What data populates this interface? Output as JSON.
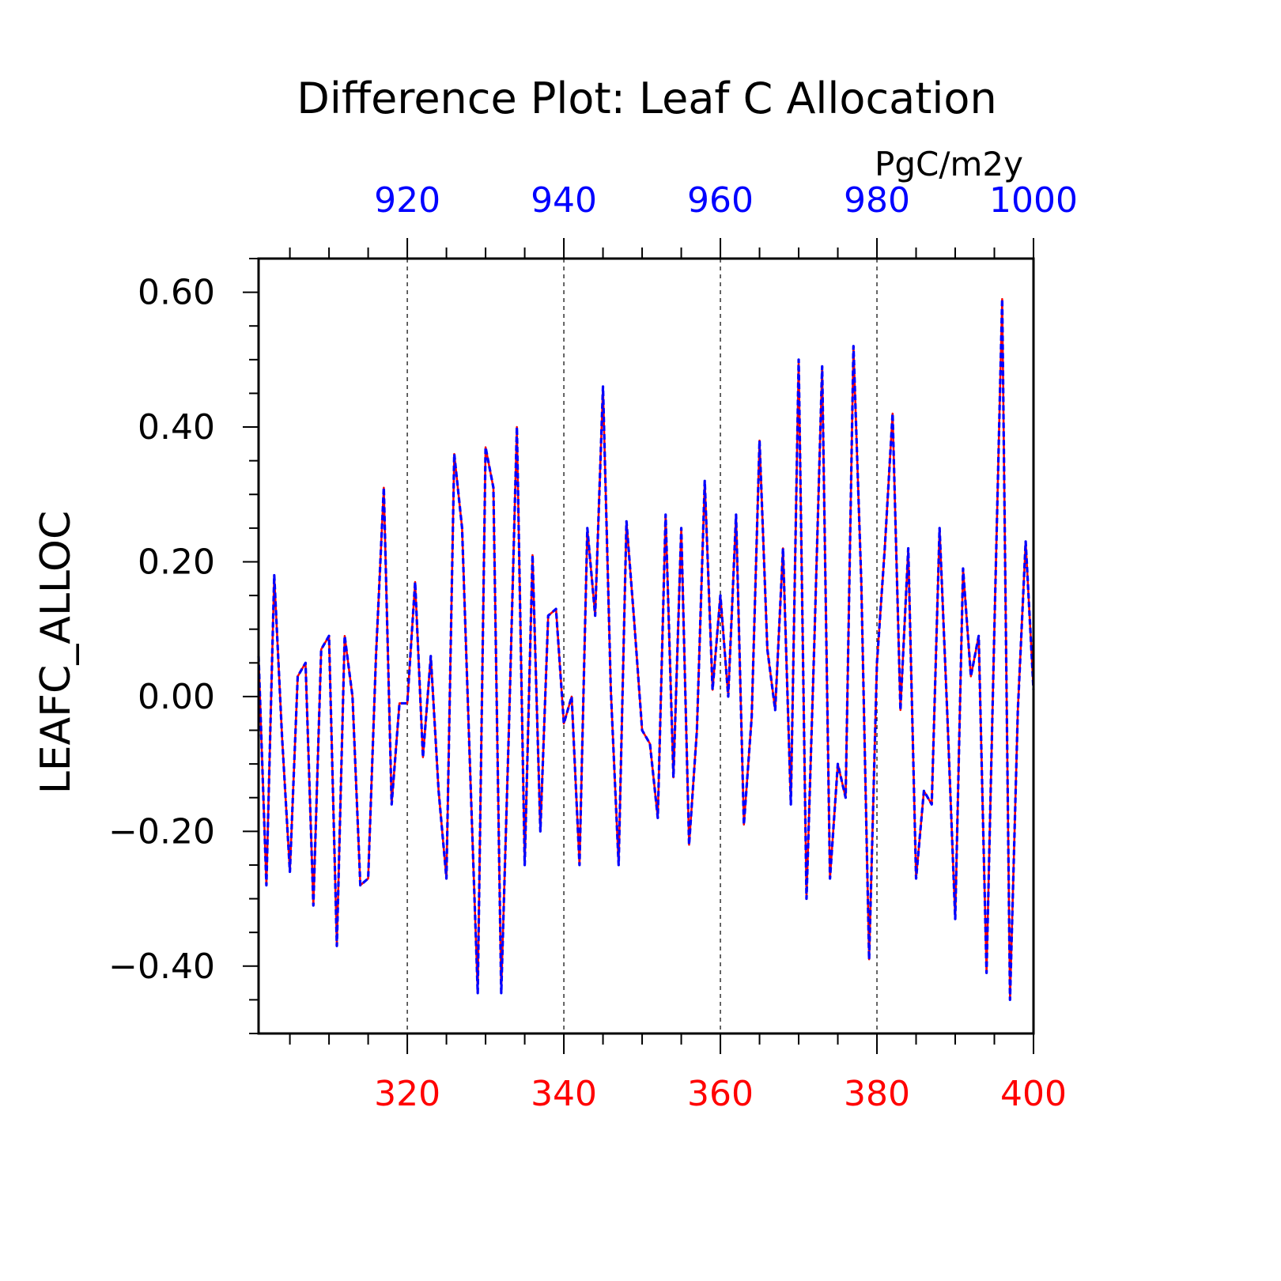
{
  "chart_data": {
    "type": "line",
    "title": "Difference Plot: Leaf C Allocation",
    "units": "PgC/m2y",
    "ylabel": "LEAFC_ALLOC",
    "xlabel": "",
    "x_bottom": {
      "range": [
        301,
        400
      ],
      "ticks": [
        320,
        340,
        360,
        380,
        400
      ],
      "tick_labels": [
        "320",
        "340",
        "360",
        "380",
        "400"
      ],
      "color": "#ff0000"
    },
    "x_top": {
      "range": [
        901,
        1000
      ],
      "ticks": [
        920,
        940,
        960,
        980,
        1000
      ],
      "tick_labels": [
        "920",
        "940",
        "960",
        "980",
        "1000"
      ],
      "color": "#0000ff"
    },
    "y": {
      "range": [
        -0.5,
        0.65
      ],
      "ticks": [
        0.6,
        0.4,
        0.2,
        0.0,
        -0.2,
        -0.4
      ],
      "tick_labels": [
        "0.60",
        "0.40",
        "0.20",
        "0.00",
        "−0.20",
        "−0.40"
      ]
    },
    "vertical_gridlines": [
      320,
      340,
      360,
      380
    ],
    "x": [
      301,
      302,
      303,
      304,
      305,
      306,
      307,
      308,
      309,
      310,
      311,
      312,
      313,
      314,
      315,
      316,
      317,
      318,
      319,
      320,
      321,
      322,
      323,
      324,
      325,
      326,
      327,
      328,
      329,
      330,
      331,
      332,
      333,
      334,
      335,
      336,
      337,
      338,
      339,
      340,
      341,
      342,
      343,
      344,
      345,
      346,
      347,
      348,
      349,
      350,
      351,
      352,
      353,
      354,
      355,
      356,
      357,
      358,
      359,
      360,
      361,
      362,
      363,
      364,
      365,
      366,
      367,
      368,
      369,
      370,
      371,
      372,
      373,
      374,
      375,
      376,
      377,
      378,
      379,
      380,
      381,
      382,
      383,
      384,
      385,
      386,
      387,
      388,
      389,
      390,
      391,
      392,
      393,
      394,
      395,
      396,
      397,
      398,
      399,
      400
    ],
    "series": [
      {
        "color": "#ff0000",
        "style": "solid",
        "values": [
          0.06,
          -0.28,
          0.18,
          -0.06,
          -0.26,
          0.03,
          0.05,
          -0.31,
          0.07,
          0.09,
          -0.37,
          0.09,
          0.0,
          -0.28,
          -0.27,
          0.06,
          0.31,
          -0.16,
          -0.01,
          -0.01,
          0.17,
          -0.09,
          0.06,
          -0.14,
          -0.27,
          0.36,
          0.25,
          -0.1,
          -0.44,
          0.37,
          0.31,
          -0.44,
          -0.04,
          0.4,
          -0.25,
          0.21,
          -0.2,
          0.12,
          0.13,
          -0.04,
          0.0,
          -0.25,
          0.25,
          0.12,
          0.46,
          0.01,
          -0.25,
          0.26,
          0.11,
          -0.05,
          -0.07,
          -0.18,
          0.27,
          -0.12,
          0.25,
          -0.22,
          -0.05,
          0.32,
          0.01,
          0.15,
          0.0,
          0.27,
          -0.19,
          -0.03,
          0.38,
          0.07,
          -0.02,
          0.22,
          -0.16,
          0.5,
          -0.3,
          0.08,
          0.49,
          -0.27,
          -0.1,
          -0.15,
          0.52,
          0.17,
          -0.39,
          0.05,
          0.22,
          0.42,
          -0.02,
          0.22,
          -0.27,
          -0.14,
          -0.16,
          0.25,
          -0.03,
          -0.33,
          0.19,
          0.03,
          0.09,
          -0.41,
          0.1,
          0.59,
          -0.45,
          -0.02,
          0.23,
          0.01
        ]
      },
      {
        "color": "#0000ff",
        "style": "dashed",
        "values": [
          0.06,
          -0.28,
          0.18,
          -0.06,
          -0.26,
          0.03,
          0.05,
          -0.31,
          0.07,
          0.09,
          -0.37,
          0.09,
          0.0,
          -0.28,
          -0.27,
          0.06,
          0.31,
          -0.16,
          -0.01,
          -0.01,
          0.17,
          -0.09,
          0.06,
          -0.14,
          -0.27,
          0.36,
          0.25,
          -0.1,
          -0.44,
          0.37,
          0.31,
          -0.44,
          -0.04,
          0.4,
          -0.25,
          0.21,
          -0.2,
          0.12,
          0.13,
          -0.04,
          0.0,
          -0.25,
          0.25,
          0.12,
          0.46,
          0.01,
          -0.25,
          0.26,
          0.11,
          -0.05,
          -0.07,
          -0.18,
          0.27,
          -0.12,
          0.25,
          -0.22,
          -0.05,
          0.32,
          0.01,
          0.15,
          0.0,
          0.27,
          -0.19,
          -0.03,
          0.38,
          0.07,
          -0.02,
          0.22,
          -0.16,
          0.5,
          -0.3,
          0.08,
          0.49,
          -0.27,
          -0.1,
          -0.15,
          0.52,
          0.17,
          -0.39,
          0.05,
          0.22,
          0.42,
          -0.02,
          0.22,
          -0.27,
          -0.14,
          -0.16,
          0.25,
          -0.03,
          -0.33,
          0.19,
          0.03,
          0.09,
          -0.41,
          0.1,
          0.59,
          -0.45,
          -0.02,
          0.23,
          0.01
        ]
      }
    ]
  }
}
